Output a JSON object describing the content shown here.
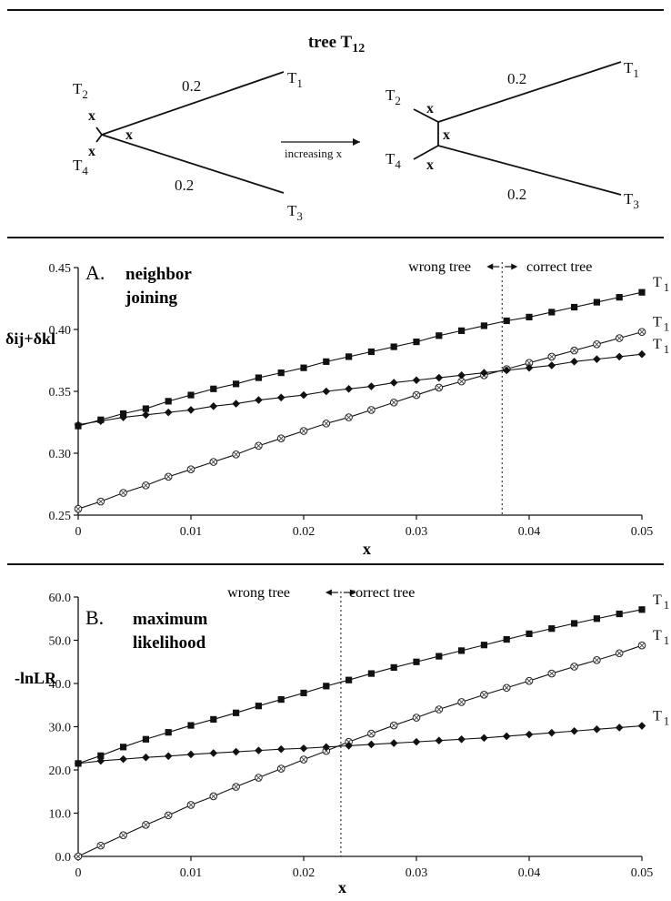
{
  "diagram": {
    "title": "tree T",
    "title_sub": "12",
    "arrow_label": "increasing x",
    "branch_label": "0.2",
    "internal_label": "x",
    "tips": [
      {
        "letter": "T",
        "sub": "1"
      },
      {
        "letter": "T",
        "sub": "2"
      },
      {
        "letter": "T",
        "sub": "3"
      },
      {
        "letter": "T",
        "sub": "4"
      }
    ]
  },
  "chart_data": [
    {
      "type": "line",
      "panel_letter": "A.",
      "method_line1": "neighbor",
      "method_line2": "joining",
      "ylabel": "δij+δkl",
      "xlabel": "x",
      "xlim": [
        0,
        0.05
      ],
      "ylim": [
        0.25,
        0.45
      ],
      "x_ticks": [
        "0",
        "0.01",
        "0.02",
        "0.03",
        "0.04",
        "0.05"
      ],
      "y_ticks": [
        "0.25",
        "0.30",
        "0.35",
        "0.40",
        "0.45"
      ],
      "threshold_x": 0.0376,
      "threshold_left": "wrong tree",
      "threshold_right": "correct tree",
      "x": [
        0,
        0.002,
        0.004,
        0.006,
        0.008,
        0.01,
        0.012,
        0.014,
        0.016,
        0.018,
        0.02,
        0.022,
        0.024,
        0.026,
        0.028,
        0.03,
        0.032,
        0.034,
        0.036,
        0.038,
        0.04,
        0.042,
        0.044,
        0.046,
        0.048,
        0.05
      ],
      "series": [
        {
          "marker": "square",
          "label": "T1",
          "values": [
            0.322,
            0.327,
            0.332,
            0.336,
            0.342,
            0.347,
            0.352,
            0.356,
            0.361,
            0.365,
            0.369,
            0.374,
            0.378,
            0.382,
            0.386,
            0.39,
            0.395,
            0.399,
            0.403,
            0.407,
            0.41,
            0.414,
            0.418,
            0.422,
            0.426,
            0.43
          ]
        },
        {
          "marker": "circle",
          "label": "T1",
          "values": [
            0.255,
            0.261,
            0.268,
            0.274,
            0.281,
            0.287,
            0.293,
            0.299,
            0.306,
            0.312,
            0.318,
            0.324,
            0.329,
            0.335,
            0.341,
            0.347,
            0.353,
            0.358,
            0.363,
            0.368,
            0.373,
            0.378,
            0.383,
            0.388,
            0.393,
            0.398
          ]
        },
        {
          "marker": "diamond",
          "label": "T1",
          "values": [
            0.323,
            0.326,
            0.329,
            0.331,
            0.333,
            0.335,
            0.338,
            0.34,
            0.343,
            0.345,
            0.347,
            0.35,
            0.352,
            0.354,
            0.357,
            0.359,
            0.361,
            0.363,
            0.365,
            0.367,
            0.369,
            0.371,
            0.374,
            0.376,
            0.378,
            0.38
          ]
        }
      ]
    },
    {
      "type": "line",
      "panel_letter": "B.",
      "method_line1": "maximum",
      "method_line2": "likelihood",
      "ylabel": "-lnLR",
      "xlabel": "x",
      "xlim": [
        0,
        0.05
      ],
      "ylim": [
        0,
        60
      ],
      "x_ticks": [
        "0",
        "0.01",
        "0.02",
        "0.03",
        "0.04",
        "0.05"
      ],
      "y_ticks": [
        "0.0",
        "10.0",
        "20.0",
        "30.0",
        "40.0",
        "50.0",
        "60.0"
      ],
      "threshold_x": 0.0233,
      "threshold_left": "wrong tree",
      "threshold_right": "correct tree",
      "x": [
        0,
        0.002,
        0.004,
        0.006,
        0.008,
        0.01,
        0.012,
        0.014,
        0.016,
        0.018,
        0.02,
        0.022,
        0.024,
        0.026,
        0.028,
        0.03,
        0.032,
        0.034,
        0.036,
        0.038,
        0.04,
        0.042,
        0.044,
        0.046,
        0.048,
        0.05
      ],
      "series": [
        {
          "marker": "square",
          "label": "T1",
          "values": [
            21.5,
            23.3,
            25.3,
            27.1,
            28.7,
            30.3,
            31.7,
            33.2,
            34.8,
            36.3,
            37.8,
            39.4,
            40.8,
            42.3,
            43.7,
            45.0,
            46.3,
            47.6,
            48.9,
            50.2,
            51.5,
            52.7,
            53.9,
            55.0,
            56.1,
            57.1
          ]
        },
        {
          "marker": "circle",
          "label": "T1",
          "values": [
            0.0,
            2.5,
            4.9,
            7.3,
            9.5,
            11.9,
            13.9,
            16.1,
            18.2,
            20.3,
            22.4,
            24.4,
            26.5,
            28.4,
            30.3,
            32.1,
            34.0,
            35.7,
            37.4,
            39.0,
            40.6,
            42.3,
            43.9,
            45.4,
            47.0,
            48.8
          ]
        },
        {
          "marker": "diamond",
          "label": "T1",
          "values": [
            21.5,
            22.1,
            22.5,
            22.9,
            23.2,
            23.6,
            23.9,
            24.2,
            24.5,
            24.8,
            25.0,
            25.3,
            25.6,
            25.9,
            26.2,
            26.5,
            26.8,
            27.1,
            27.4,
            27.8,
            28.2,
            28.6,
            29.0,
            29.4,
            29.8,
            30.2
          ]
        }
      ]
    }
  ]
}
